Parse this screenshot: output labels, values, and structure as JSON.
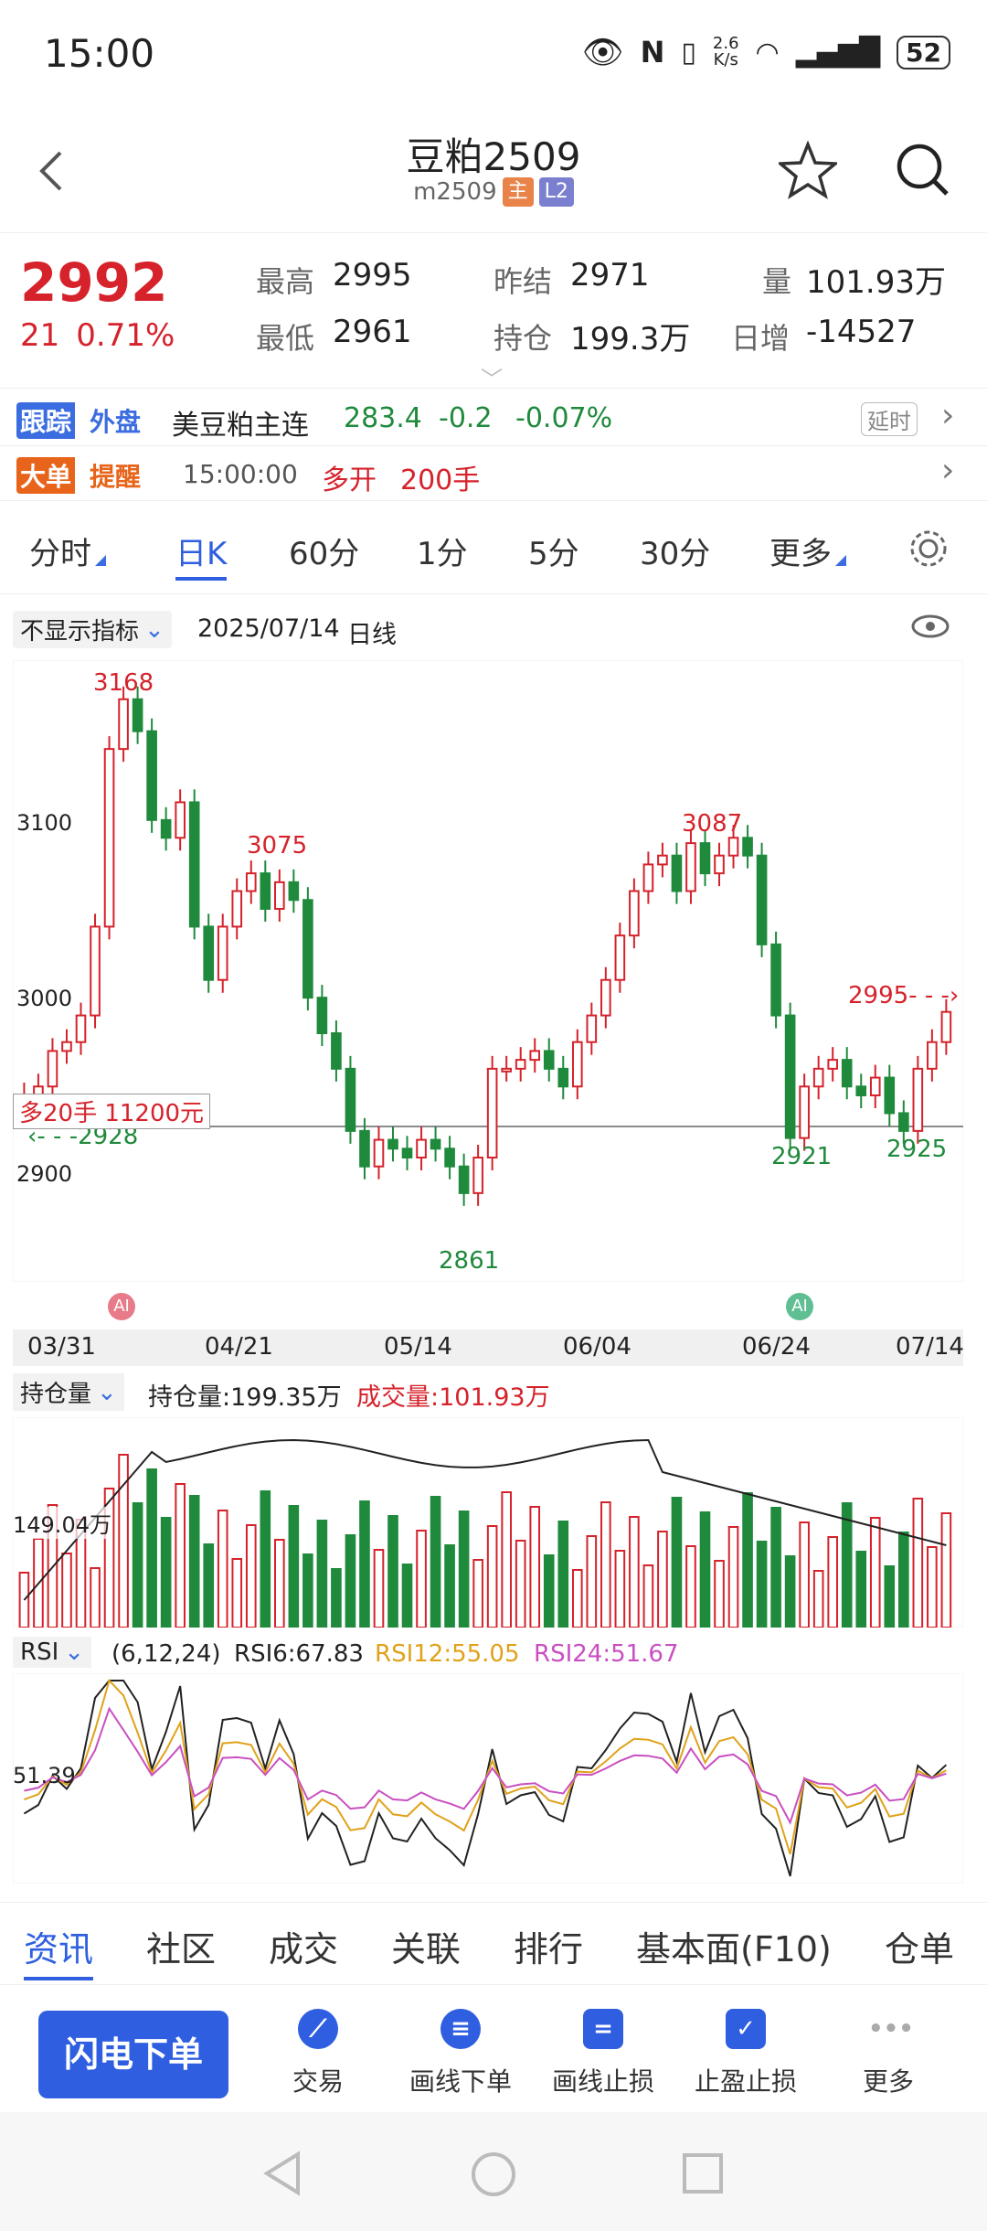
{
  "status": {
    "time": "15:00",
    "net_speed_top": "2.6",
    "net_speed_unit": "K/s",
    "battery": "52"
  },
  "header": {
    "title": "豆粕2509",
    "code": "m2509",
    "badge_main": "主",
    "badge_l2": "L2"
  },
  "quote": {
    "price": "2992",
    "change": "21",
    "change_pct": "0.71%",
    "high_label": "最高",
    "high": "2995",
    "low_label": "最低",
    "low": "2961",
    "prev_settle_label": "昨结",
    "prev_settle": "2971",
    "oi_label": "持仓",
    "oi": "199.3万",
    "vol_label": "量",
    "vol": "101.93万",
    "daily_inc_label": "日增",
    "daily_inc": "-14527"
  },
  "foreign": {
    "badge1": "跟踪",
    "badge2": "外盘",
    "name": "美豆粕主连",
    "price": "283.4",
    "chg": "-0.2",
    "pct": "-0.07%",
    "delay": "延时"
  },
  "bigorder": {
    "badge1": "大单",
    "badge2": "提醒",
    "time": "15:00:00",
    "type": "多开",
    "qty": "200手"
  },
  "tabs": [
    "分时",
    "日K",
    "60分",
    "1分",
    "5分",
    "30分",
    "更多"
  ],
  "chart_header": {
    "indicator": "不显示指标",
    "date": "2025/07/14",
    "period": "日线"
  },
  "annotations": {
    "high1": "3168",
    "high2": "3075",
    "high3": "3087",
    "low1": "2861",
    "low2": "2921",
    "low3": "2925",
    "last_arrow": "2995",
    "left_arrow": "2928",
    "position_label": "多20手 11200元",
    "ai1": "AI",
    "ai2": "AI"
  },
  "yaxis": [
    "3100",
    "3000",
    "2900"
  ],
  "xaxis": [
    "03/31",
    "04/21",
    "05/14",
    "06/04",
    "06/24",
    "07/14"
  ],
  "volume_header": {
    "selector": "持仓量",
    "oi_text": "持仓量:199.35万",
    "vol_text": "成交量:101.93万",
    "axis_label": "149.04万"
  },
  "rsi_header": {
    "selector": "RSI",
    "params": "(6,12,24)",
    "rsi6": "RSI6:67.83",
    "rsi12": "RSI12:55.05",
    "rsi24": "RSI24:51.67",
    "axis_label": "51.39"
  },
  "bottom_tabs": [
    "资讯",
    "社区",
    "成交",
    "关联",
    "排行",
    "基本面(F10)",
    "仓单"
  ],
  "actions": {
    "primary": "闪电下单",
    "items": [
      "交易",
      "画线下单",
      "画线止损",
      "止盈止损",
      "更多"
    ]
  },
  "colors": {
    "up": "#d5222b",
    "down": "#1f8a3c",
    "accent": "#2f5fe0",
    "rsi6": "#222222",
    "rsi12": "#e0a21a",
    "rsi24": "#c94fc1"
  },
  "chart_data": {
    "type": "candlestick",
    "ylim": [
      2840,
      3190
    ],
    "candles_close": [
      2945,
      2950,
      2970,
      2975,
      2990,
      3040,
      3140,
      3168,
      3150,
      3100,
      3090,
      3110,
      3040,
      3010,
      3040,
      3060,
      3070,
      3050,
      3065,
      3055,
      3000,
      2980,
      2960,
      2925,
      2905,
      2920,
      2915,
      2910,
      2920,
      2915,
      2905,
      2890,
      2910,
      2960,
      2960,
      2965,
      2970,
      2960,
      2950,
      2975,
      2990,
      3010,
      3035,
      3060,
      3075,
      3080,
      3060,
      3087,
      3070,
      3080,
      3090,
      3080,
      3030,
      2990,
      2921,
      2950,
      2960,
      2965,
      2950,
      2945,
      2955,
      2935,
      2925,
      2960,
      2975,
      2992
    ],
    "volume_desc": "mixed red/green volume bars with open interest line",
    "rsi": {
      "rsi6": "67.83",
      "rsi12": "55.05",
      "rsi24": "51.67"
    }
  }
}
